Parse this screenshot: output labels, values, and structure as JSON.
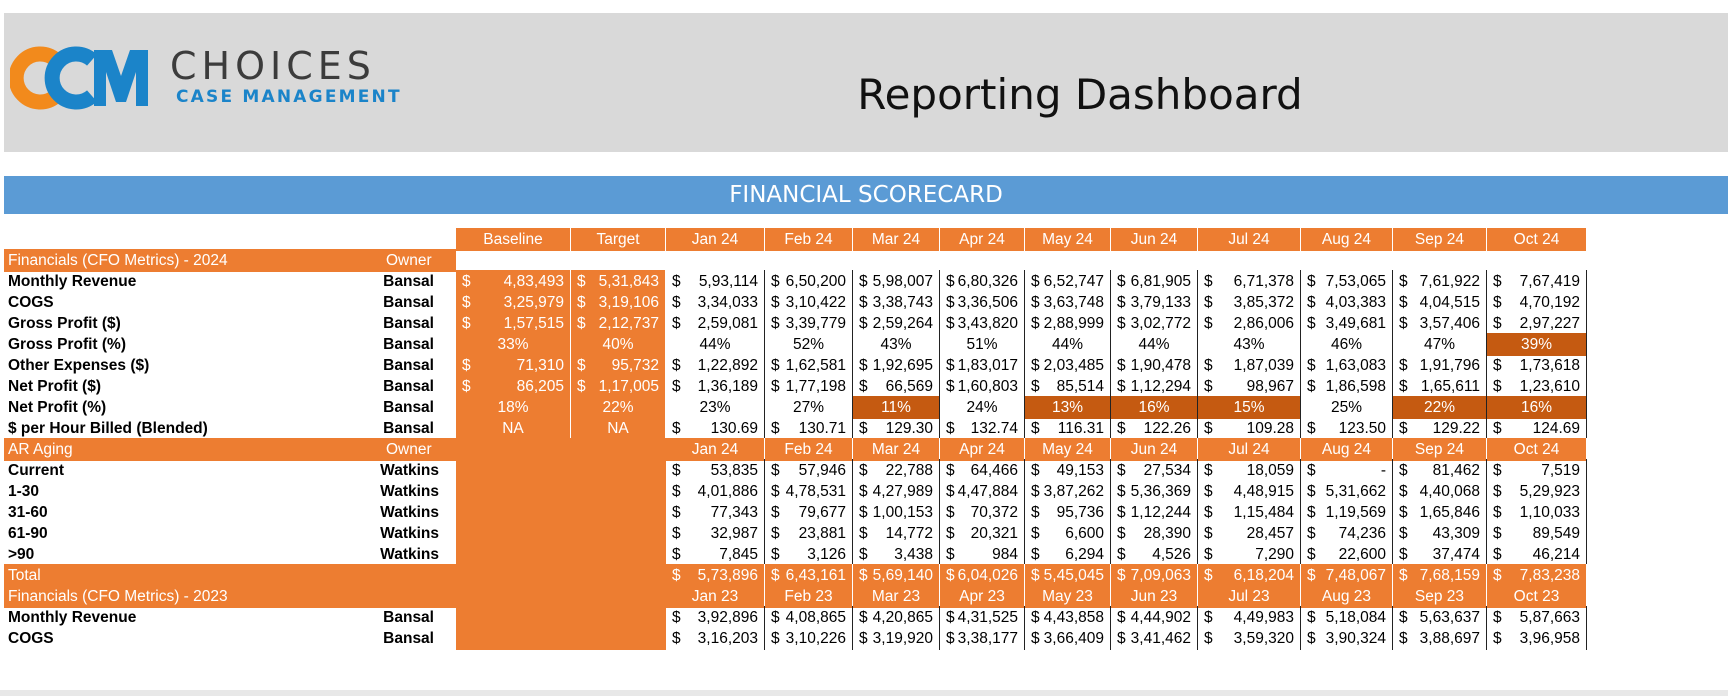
{
  "brand": {
    "logo_mark": "CCM",
    "name_line1": "CHOICES",
    "name_line2": "CASE MANAGEMENT",
    "colors": {
      "orange": "#f28a1c",
      "blue": "#1b84c9",
      "gray": "#3c3c3c"
    }
  },
  "title": "Reporting Dashboard",
  "scorecard_title": "FINANCIAL SCORECARD",
  "colors": {
    "accent_orange": "#ed7d31",
    "highlight": "#c55a11",
    "band_blue": "#5b9bd5",
    "header_gray": "#d9d9d9"
  },
  "columns": {
    "baseline": "Baseline",
    "target": "Target",
    "months_2024": [
      "Jan 24",
      "Feb 24",
      "Mar 24",
      "Apr 24",
      "May 24",
      "Jun 24",
      "Jul 24",
      "Aug 24",
      "Sep 24",
      "Oct 24"
    ],
    "months_2023": [
      "Jan 23",
      "Feb 23",
      "Mar 23",
      "Apr 23",
      "May 23",
      "Jun 23",
      "Jul 23",
      "Aug 23",
      "Sep 23",
      "Oct 23"
    ]
  },
  "sections": {
    "cfo_2024": {
      "label": "Financials (CFO Metrics) - 2024",
      "owner_header": "Owner"
    },
    "ar_aging": {
      "label": "AR Aging",
      "owner_header": "Owner"
    },
    "cfo_2023": {
      "label": "Financials (CFO Metrics) - 2023"
    }
  },
  "rows_2024": [
    {
      "label": "Monthly Revenue",
      "owner": "Bansal",
      "kind": "money",
      "baseline": "4,83,493",
      "target": "5,31,843",
      "values": [
        "5,93,114",
        "6,50,200",
        "5,98,007",
        "6,80,326",
        "6,52,747",
        "6,81,905",
        "6,71,378",
        "7,53,065",
        "7,61,922",
        "7,67,419"
      ],
      "highlight": []
    },
    {
      "label": "COGS",
      "owner": "Bansal",
      "kind": "money",
      "baseline": "3,25,979",
      "target": "3,19,106",
      "values": [
        "3,34,033",
        "3,10,422",
        "3,38,743",
        "3,36,506",
        "3,63,748",
        "3,79,133",
        "3,85,372",
        "4,03,383",
        "4,04,515",
        "4,70,192"
      ],
      "highlight": []
    },
    {
      "label": "Gross Profit ($)",
      "owner": "Bansal",
      "kind": "money",
      "baseline": "1,57,515",
      "target": "2,12,737",
      "values": [
        "2,59,081",
        "3,39,779",
        "2,59,264",
        "3,43,820",
        "2,88,999",
        "3,02,772",
        "2,86,006",
        "3,49,681",
        "3,57,406",
        "2,97,227"
      ],
      "highlight": []
    },
    {
      "label": "Gross Profit (%)",
      "owner": "Bansal",
      "kind": "pct",
      "baseline": "33%",
      "target": "40%",
      "values": [
        "44%",
        "52%",
        "43%",
        "51%",
        "44%",
        "44%",
        "43%",
        "46%",
        "47%",
        "39%"
      ],
      "highlight": [
        9
      ]
    },
    {
      "label": "Other Expenses ($)",
      "owner": "Bansal",
      "kind": "money",
      "baseline": "71,310",
      "target": "95,732",
      "values": [
        "1,22,892",
        "1,62,581",
        "1,92,695",
        "1,83,017",
        "2,03,485",
        "1,90,478",
        "1,87,039",
        "1,63,083",
        "1,91,796",
        "1,73,618"
      ],
      "highlight": []
    },
    {
      "label": "Net Profit ($)",
      "owner": "Bansal",
      "kind": "money",
      "baseline": "86,205",
      "target": "1,17,005",
      "values": [
        "1,36,189",
        "1,77,198",
        "66,569",
        "1,60,803",
        "85,514",
        "1,12,294",
        "98,967",
        "1,86,598",
        "1,65,611",
        "1,23,610"
      ],
      "highlight": []
    },
    {
      "label": "Net Profit (%)",
      "owner": "Bansal",
      "kind": "pct",
      "baseline": "18%",
      "target": "22%",
      "values": [
        "23%",
        "27%",
        "11%",
        "24%",
        "13%",
        "16%",
        "15%",
        "25%",
        "22%",
        "16%"
      ],
      "highlight": [
        2,
        4,
        5,
        6,
        8,
        9
      ]
    },
    {
      "label": "$ per Hour Billed (Blended)",
      "owner": "Bansal",
      "kind": "money",
      "baseline": "NA",
      "target": "NA",
      "values": [
        "130.69",
        "130.71",
        "129.30",
        "132.74",
        "116.31",
        "122.26",
        "109.28",
        "123.50",
        "129.22",
        "124.69"
      ],
      "highlight": []
    }
  ],
  "ar_rows": [
    {
      "label": "Current",
      "owner": "Watkins",
      "values": [
        "53,835",
        "57,946",
        "22,788",
        "64,466",
        "49,153",
        "27,534",
        "18,059",
        "-",
        "81,462",
        "7,519"
      ]
    },
    {
      "label": "1-30",
      "owner": "Watkins",
      "values": [
        "4,01,886",
        "4,78,531",
        "4,27,989",
        "4,47,884",
        "3,87,262",
        "5,36,369",
        "4,48,915",
        "5,31,662",
        "4,40,068",
        "5,29,923"
      ]
    },
    {
      "label": "31-60",
      "owner": "Watkins",
      "values": [
        "77,343",
        "79,677",
        "1,00,153",
        "70,372",
        "95,736",
        "1,12,244",
        "1,15,484",
        "1,19,569",
        "1,65,846",
        "1,10,033"
      ]
    },
    {
      "label": "61-90",
      "owner": "Watkins",
      "values": [
        "32,987",
        "23,881",
        "14,772",
        "20,321",
        "6,600",
        "28,390",
        "28,457",
        "74,236",
        "43,309",
        "89,549"
      ]
    },
    {
      "label": ">90",
      "owner": "Watkins",
      "values": [
        "7,845",
        "3,126",
        "3,438",
        "984",
        "6,294",
        "4,526",
        "7,290",
        "22,600",
        "37,474",
        "46,214"
      ]
    }
  ],
  "ar_total": {
    "label": "Total",
    "values": [
      "5,73,896",
      "6,43,161",
      "5,69,140",
      "6,04,026",
      "5,45,045",
      "7,09,063",
      "6,18,204",
      "7,48,067",
      "7,68,159",
      "7,83,238"
    ]
  },
  "rows_2023": [
    {
      "label": "Monthly Revenue",
      "owner": "Bansal",
      "values": [
        "3,92,896",
        "4,08,865",
        "4,20,865",
        "4,31,525",
        "4,43,858",
        "4,44,902",
        "4,49,983",
        "5,18,084",
        "5,63,637",
        "5,87,663"
      ]
    },
    {
      "label": "COGS",
      "owner": "Bansal",
      "values": [
        "3,16,203",
        "3,10,226",
        "3,19,920",
        "3,38,177",
        "3,66,409",
        "3,41,462",
        "3,59,320",
        "3,90,324",
        "3,88,697",
        "3,96,958"
      ]
    }
  ],
  "currency_symbol": "$"
}
